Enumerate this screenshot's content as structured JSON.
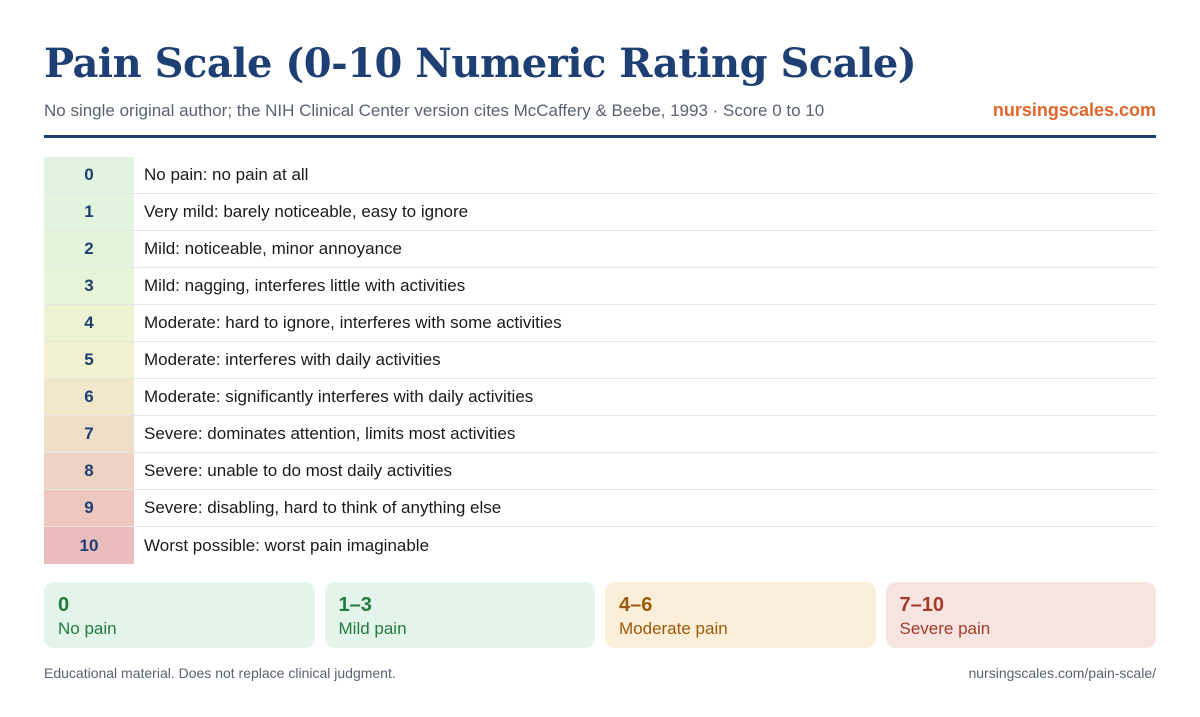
{
  "header": {
    "title": "Pain Scale (0-10 Numeric Rating Scale)",
    "subtitle": "No single original author; the NIH Clinical Center version cites McCaffery & Beebe, 1993 · Score 0 to 10",
    "brand": "nursingscales.com"
  },
  "rows": [
    {
      "score": "0",
      "description": "No pain: no pain at all",
      "color": "#e1f4e1"
    },
    {
      "score": "1",
      "description": "Very mild: barely noticeable, easy to ignore",
      "color": "#e1f4de"
    },
    {
      "score": "2",
      "description": "Mild: noticeable, minor annoyance",
      "color": "#e4f4da"
    },
    {
      "score": "3",
      "description": "Mild: nagging, interferes little with activities",
      "color": "#e7f4d6"
    },
    {
      "score": "4",
      "description": "Moderate: hard to ignore, interferes with some activities",
      "color": "#ecf3d2"
    },
    {
      "score": "5",
      "description": "Moderate: interferes with daily activities",
      "color": "#f2f1cf"
    },
    {
      "score": "6",
      "description": "Moderate: significantly interferes with daily activities",
      "color": "#f1e8cc"
    },
    {
      "score": "7",
      "description": "Severe: dominates attention, limits most activities",
      "color": "#efddc8"
    },
    {
      "score": "8",
      "description": "Severe: unable to do most daily activities",
      "color": "#eed2c4"
    },
    {
      "score": "9",
      "description": "Severe: disabling, hard to think of anything else",
      "color": "#edc7c0"
    },
    {
      "score": "10",
      "description": "Worst possible: worst pain imaginable",
      "color": "#ebbcbd"
    }
  ],
  "categories": [
    {
      "range": "0",
      "label": "No pain",
      "bg": "#e3f4ea",
      "color": "#237a3e"
    },
    {
      "range": "1–3",
      "label": "Mild pain",
      "bg": "#e3f4ea",
      "color": "#237a3e"
    },
    {
      "range": "4–6",
      "label": "Moderate pain",
      "bg": "#fbefd9",
      "color": "#9a5a0b"
    },
    {
      "range": "7–10",
      "label": "Severe pain",
      "bg": "#f6e4e0",
      "color": "#a33a2a"
    }
  ],
  "footer": {
    "disclaimer": "Educational material. Does not replace clinical judgment.",
    "url": "nursingscales.com/pain-scale/"
  }
}
